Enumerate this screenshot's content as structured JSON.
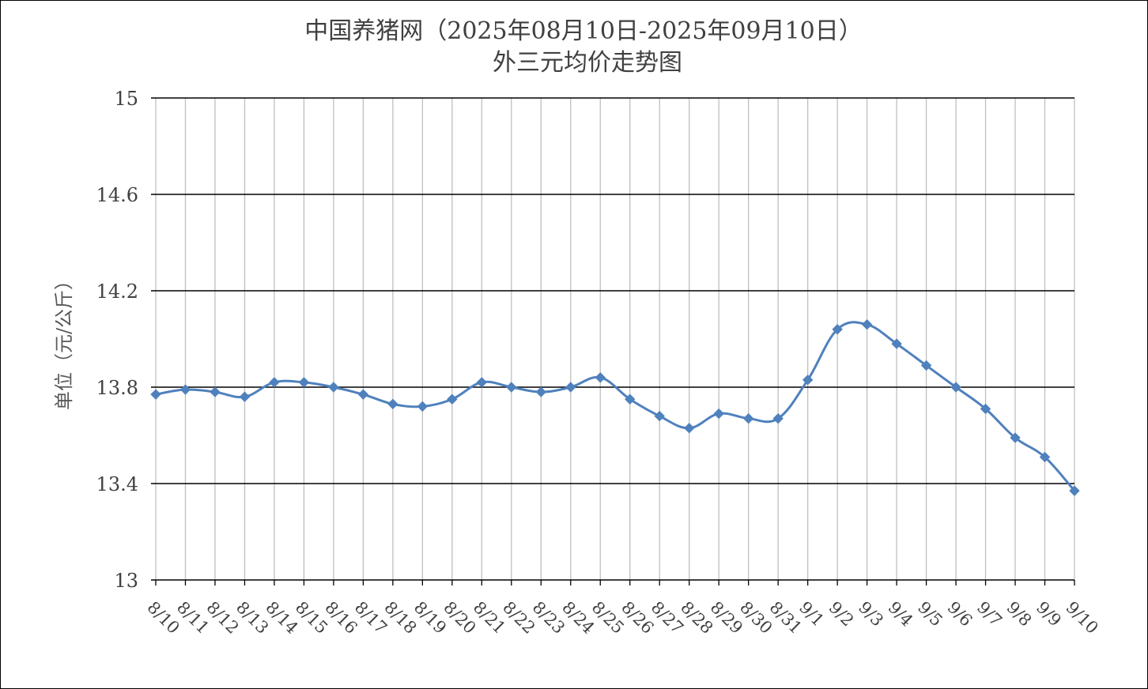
{
  "chart_data": {
    "type": "line",
    "title_line1": "中国养猪网（2025年08月10日-2025年09月10日）",
    "title_line2": "外三元均价走势图",
    "ylabel": "单位（元/公斤）",
    "xlabel": "",
    "ylim": [
      13,
      15
    ],
    "yticks": [
      "13",
      "13.4",
      "13.8",
      "14.2",
      "14.6",
      "15"
    ],
    "grid": true,
    "legend": "none",
    "categories": [
      "8/10",
      "8/11",
      "8/12",
      "8/13",
      "8/14",
      "8/15",
      "8/16",
      "8/17",
      "8/18",
      "8/19",
      "8/20",
      "8/21",
      "8/22",
      "8/23",
      "8/24",
      "8/25",
      "8/26",
      "8/27",
      "8/28",
      "8/29",
      "8/30",
      "8/31",
      "9/1",
      "9/2",
      "9/3",
      "9/4",
      "9/5",
      "9/6",
      "9/7",
      "9/8",
      "9/9",
      "9/10"
    ],
    "series": [
      {
        "color": "#4F81BD",
        "values": [
          13.77,
          13.79,
          13.78,
          13.76,
          13.82,
          13.82,
          13.8,
          13.77,
          13.73,
          13.72,
          13.75,
          13.82,
          13.8,
          13.78,
          13.8,
          13.84,
          13.75,
          13.68,
          13.63,
          13.69,
          13.67,
          13.67,
          13.83,
          14.04,
          14.06,
          13.98,
          13.89,
          13.8,
          13.71,
          13.59,
          13.51,
          13.37
        ]
      }
    ]
  }
}
